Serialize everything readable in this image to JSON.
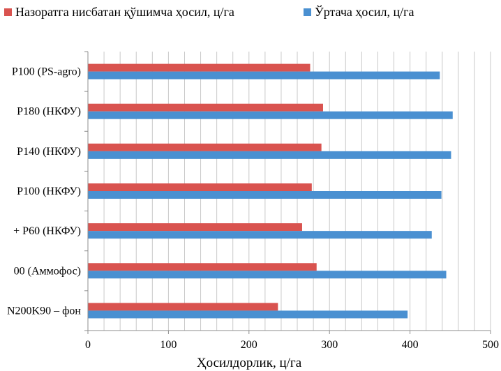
{
  "chart_data": {
    "type": "bar",
    "orientation": "horizontal",
    "categories": [
      "N200K90 – фон",
      "00 (Аммофос)",
      "+ P60 (НКФУ)",
      "P100 (НКФУ)",
      "P140 (НКФУ)",
      "P180 (НКФУ)",
      "P100 (PS-agro)"
    ],
    "series": [
      {
        "name": "Назоратга нисбатан қўшимча ҳосил, ц/га",
        "color": "#d9534f",
        "values": [
          236,
          284,
          266,
          278,
          290,
          292,
          276
        ]
      },
      {
        "name": "Ўртача ҳосил, ц/га",
        "color": "#4a90d1",
        "values": [
          397,
          445,
          427,
          439,
          451,
          453,
          437
        ]
      }
    ],
    "xlabel": "Ҳосилдорлик, ц/га",
    "ylabel": "",
    "xlim": [
      0,
      500
    ],
    "xticks": [
      0,
      100,
      200,
      300,
      400,
      500
    ],
    "minor_gridlines_step": 20,
    "grid": true,
    "legend_position": "top"
  }
}
